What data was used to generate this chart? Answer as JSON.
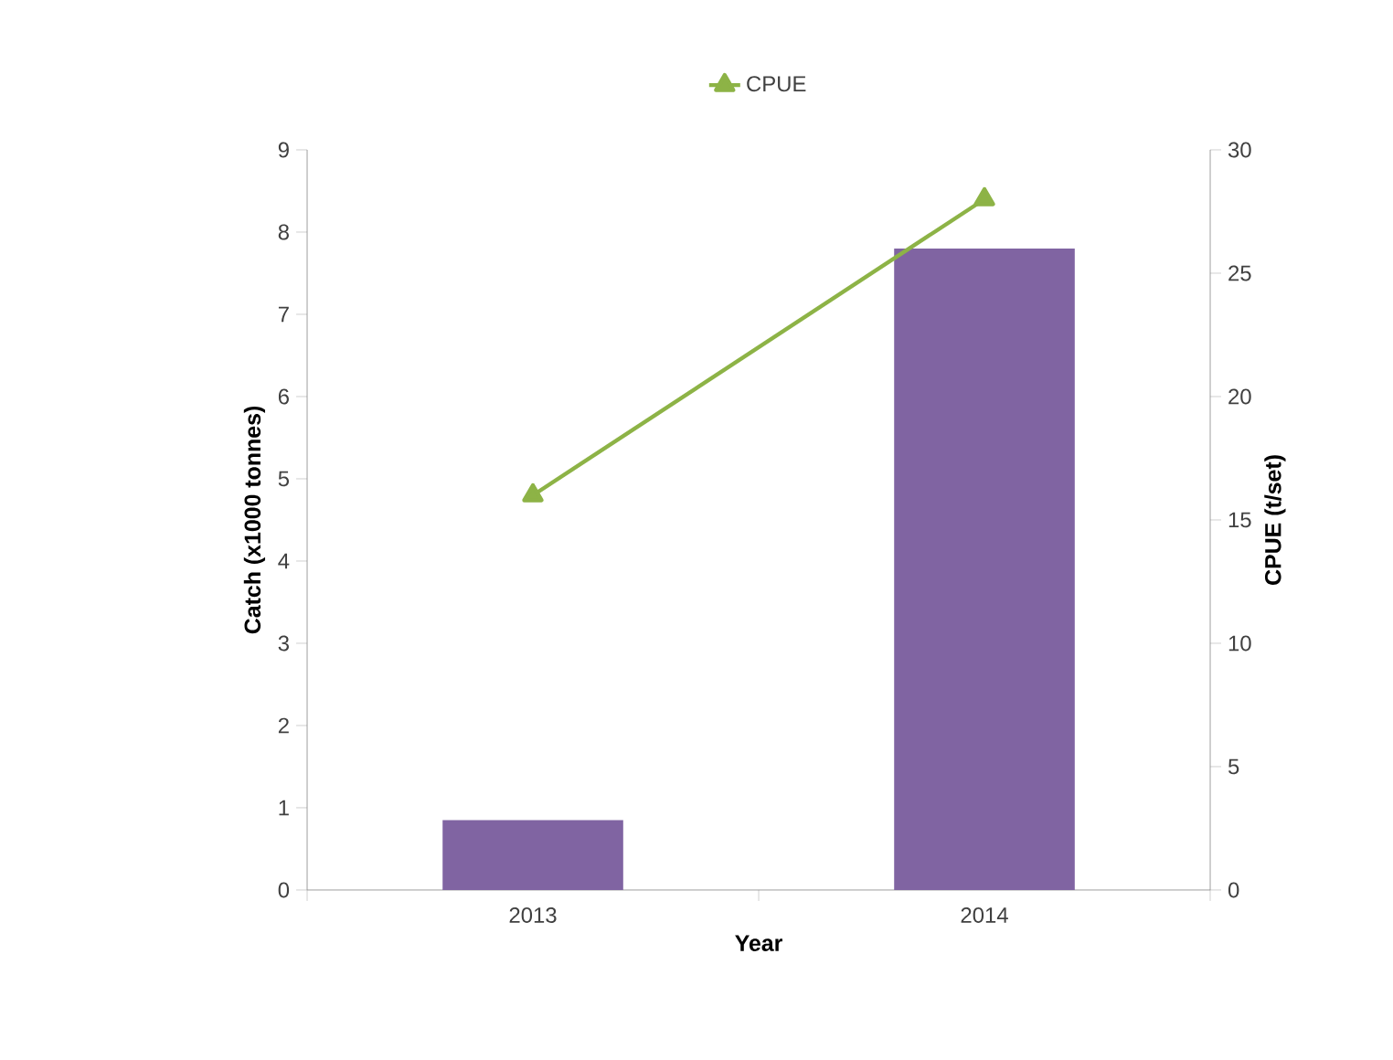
{
  "chart_data": {
    "type": "bar",
    "xlabel": "Year",
    "ylabel": "Catch (x1000 tonnes)",
    "y2label": "CPUE (t/set)",
    "categories": [
      "2013",
      "2014"
    ],
    "series": [
      {
        "color": "#8064a2",
        "values": [
          0.85,
          7.8
        ]
      },
      {
        "type": "line",
        "name": "CPUE",
        "color": "#8db346",
        "axis": "y2",
        "marker": "triangle",
        "values": [
          16,
          28
        ]
      }
    ],
    "ylim": [
      0,
      9
    ],
    "yticks": [
      0,
      1,
      2,
      3,
      4,
      5,
      6,
      7,
      8,
      9
    ],
    "y2lim": [
      0,
      30
    ],
    "y2ticks": [
      0,
      5,
      10,
      15,
      20,
      25,
      30
    ],
    "legend": "top"
  }
}
